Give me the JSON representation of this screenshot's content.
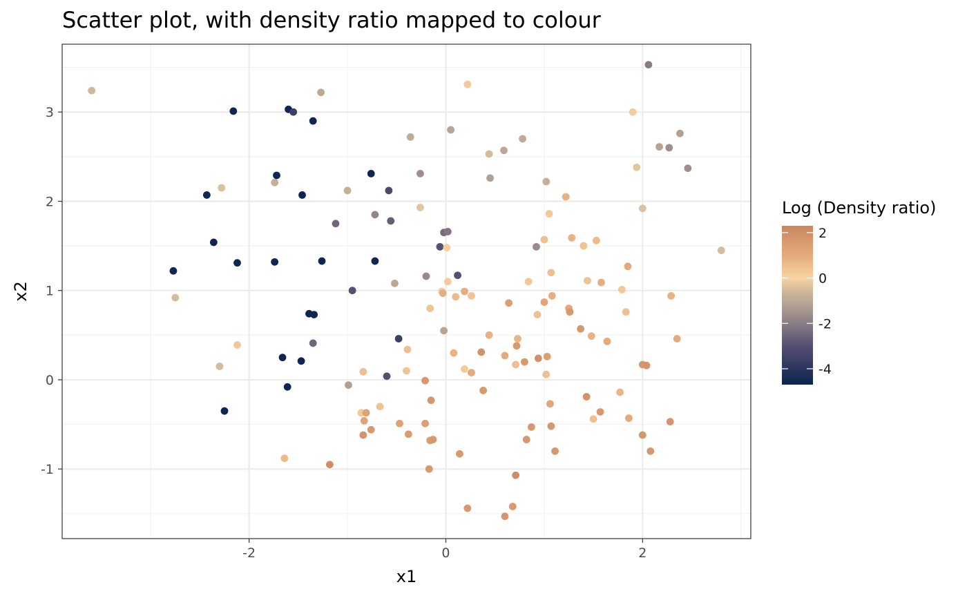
{
  "chart_data": {
    "type": "scatter",
    "title": "Scatter plot, with density ratio mapped to colour",
    "xlabel": "x1",
    "ylabel": "x2",
    "xlim": [
      -3.9,
      3.1
    ],
    "ylim": [
      -1.78,
      3.76
    ],
    "x_ticks": [
      -2,
      0,
      2
    ],
    "y_ticks": [
      -1,
      0,
      1,
      2,
      3
    ],
    "x_tick_labels": [
      "-2",
      "0",
      "2"
    ],
    "y_tick_labels": [
      "-1",
      "0",
      "1",
      "2",
      "3"
    ],
    "grid": true,
    "legend": {
      "title": "Log (Density ratio)",
      "placement": "right",
      "range": [
        -4.7,
        2.3
      ],
      "ticks": [
        2,
        0,
        -2,
        -4
      ],
      "tick_labels": [
        "2",
        "0",
        "-2",
        "-4"
      ],
      "color_stops": [
        {
          "value": -4.7,
          "color": "#0c2350"
        },
        {
          "value": -3.0,
          "color": "#554f71"
        },
        {
          "value": -1.5,
          "color": "#a3948f"
        },
        {
          "value": -0.5,
          "color": "#d4bc9a"
        },
        {
          "value": 0.0,
          "color": "#f9d3a2"
        },
        {
          "value": 1.0,
          "color": "#e4aa7c"
        },
        {
          "value": 2.3,
          "color": "#c98660"
        }
      ]
    },
    "points": [
      {
        "x": -3.6,
        "y": 3.24,
        "c": -0.6
      },
      {
        "x": -2.77,
        "y": 1.22,
        "c": -4.6
      },
      {
        "x": -2.75,
        "y": 0.92,
        "c": -0.5
      },
      {
        "x": -2.43,
        "y": 2.07,
        "c": -4.6
      },
      {
        "x": -2.36,
        "y": 1.54,
        "c": -4.6
      },
      {
        "x": -2.3,
        "y": 0.15,
        "c": -0.5
      },
      {
        "x": -2.28,
        "y": 2.15,
        "c": -0.4
      },
      {
        "x": -2.25,
        "y": -0.35,
        "c": -4.6
      },
      {
        "x": -2.16,
        "y": 3.01,
        "c": -4.6
      },
      {
        "x": -2.12,
        "y": 1.31,
        "c": -4.6
      },
      {
        "x": -2.12,
        "y": 0.39,
        "c": 0.3
      },
      {
        "x": -1.74,
        "y": 2.21,
        "c": -0.8
      },
      {
        "x": -1.74,
        "y": 1.32,
        "c": -4.6
      },
      {
        "x": -1.72,
        "y": 2.29,
        "c": -4.6
      },
      {
        "x": -1.66,
        "y": 0.25,
        "c": -4.6
      },
      {
        "x": -1.64,
        "y": -0.88,
        "c": 0.6
      },
      {
        "x": -1.61,
        "y": -0.08,
        "c": -4.6
      },
      {
        "x": -1.6,
        "y": 3.03,
        "c": -4.6
      },
      {
        "x": -1.55,
        "y": 3.0,
        "c": -3.6
      },
      {
        "x": -1.47,
        "y": 0.21,
        "c": -4.6
      },
      {
        "x": -1.46,
        "y": 2.07,
        "c": -4.6
      },
      {
        "x": -1.39,
        "y": 0.74,
        "c": -4.6
      },
      {
        "x": -1.35,
        "y": 2.9,
        "c": -4.6
      },
      {
        "x": -1.35,
        "y": 0.41,
        "c": -2.5
      },
      {
        "x": -1.34,
        "y": 0.73,
        "c": -4.6
      },
      {
        "x": -1.27,
        "y": 3.22,
        "c": -1.0
      },
      {
        "x": -1.26,
        "y": 1.33,
        "c": -4.6
      },
      {
        "x": -1.18,
        "y": -0.95,
        "c": 2.0
      },
      {
        "x": -1.12,
        "y": 1.75,
        "c": -2.5
      },
      {
        "x": -1.0,
        "y": 2.12,
        "c": -0.8
      },
      {
        "x": -0.99,
        "y": -0.06,
        "c": -1.2
      },
      {
        "x": -0.95,
        "y": 1.0,
        "c": -3.0
      },
      {
        "x": -0.86,
        "y": -0.37,
        "c": 0.3
      },
      {
        "x": -0.84,
        "y": -0.62,
        "c": 1.8
      },
      {
        "x": -0.84,
        "y": 0.09,
        "c": 0.5
      },
      {
        "x": -0.83,
        "y": -0.46,
        "c": 1.2
      },
      {
        "x": -0.81,
        "y": -0.37,
        "c": 1.3
      },
      {
        "x": -0.76,
        "y": -0.56,
        "c": 1.6
      },
      {
        "x": -0.76,
        "y": 2.31,
        "c": -4.6
      },
      {
        "x": -0.72,
        "y": 1.85,
        "c": -1.8
      },
      {
        "x": -0.72,
        "y": 1.33,
        "c": -4.6
      },
      {
        "x": -0.67,
        "y": -0.3,
        "c": 0.4
      },
      {
        "x": -0.58,
        "y": 2.12,
        "c": -3.2
      },
      {
        "x": -0.6,
        "y": 0.04,
        "c": -3.0
      },
      {
        "x": -0.56,
        "y": 1.78,
        "c": -2.7
      },
      {
        "x": -0.52,
        "y": 1.08,
        "c": -1.0
      },
      {
        "x": -0.48,
        "y": 0.46,
        "c": -3.6
      },
      {
        "x": -0.47,
        "y": -0.49,
        "c": 1.3
      },
      {
        "x": -0.4,
        "y": 0.1,
        "c": 0.4
      },
      {
        "x": -0.39,
        "y": 0.34,
        "c": 0.5
      },
      {
        "x": -0.38,
        "y": -0.61,
        "c": 1.5
      },
      {
        "x": -0.36,
        "y": 2.72,
        "c": -0.9
      },
      {
        "x": -0.26,
        "y": 2.31,
        "c": -1.6
      },
      {
        "x": -0.26,
        "y": 1.93,
        "c": -0.3
      },
      {
        "x": -0.21,
        "y": -0.49,
        "c": 1.4
      },
      {
        "x": -0.21,
        "y": -0.01,
        "c": 1.7
      },
      {
        "x": -0.2,
        "y": 1.16,
        "c": -1.7
      },
      {
        "x": -0.17,
        "y": -1.0,
        "c": 1.6
      },
      {
        "x": -0.16,
        "y": 0.8,
        "c": 0.4
      },
      {
        "x": -0.16,
        "y": -0.68,
        "c": 1.5
      },
      {
        "x": -0.15,
        "y": -0.23,
        "c": 1.7
      },
      {
        "x": -0.13,
        "y": -0.67,
        "c": 1.6
      },
      {
        "x": -0.06,
        "y": 1.49,
        "c": -3.0
      },
      {
        "x": -0.04,
        "y": 0.99,
        "c": 0.2
      },
      {
        "x": -0.03,
        "y": 0.97,
        "c": 0.9
      },
      {
        "x": -0.02,
        "y": 1.65,
        "c": -2.4
      },
      {
        "x": -0.02,
        "y": 0.55,
        "c": -1.1
      },
      {
        "x": 0.01,
        "y": 1.48,
        "c": 0.1
      },
      {
        "x": 0.02,
        "y": 1.66,
        "c": -2.2
      },
      {
        "x": 0.02,
        "y": 1.1,
        "c": 0.2
      },
      {
        "x": 0.05,
        "y": 2.8,
        "c": -1.1
      },
      {
        "x": 0.08,
        "y": 0.3,
        "c": 0.8
      },
      {
        "x": 0.1,
        "y": 0.93,
        "c": 0.6
      },
      {
        "x": 0.12,
        "y": 1.17,
        "c": -3.0
      },
      {
        "x": 0.14,
        "y": -0.83,
        "c": 1.6
      },
      {
        "x": 0.19,
        "y": 0.12,
        "c": 0.2
      },
      {
        "x": 0.19,
        "y": 0.99,
        "c": 0.9
      },
      {
        "x": 0.22,
        "y": 3.31,
        "c": 0.3
      },
      {
        "x": 0.22,
        "y": -1.44,
        "c": 1.6
      },
      {
        "x": 0.26,
        "y": 0.94,
        "c": 0.4
      },
      {
        "x": 0.26,
        "y": 0.08,
        "c": 1.0
      },
      {
        "x": 0.36,
        "y": 0.31,
        "c": 1.9
      },
      {
        "x": 0.38,
        "y": -0.12,
        "c": 1.6
      },
      {
        "x": 0.44,
        "y": 2.53,
        "c": -0.5
      },
      {
        "x": 0.44,
        "y": 0.5,
        "c": 0.8
      },
      {
        "x": 0.45,
        "y": 2.26,
        "c": -1.2
      },
      {
        "x": 0.59,
        "y": 2.57,
        "c": -1.0
      },
      {
        "x": 0.6,
        "y": 0.27,
        "c": 1.0
      },
      {
        "x": 0.6,
        "y": -1.53,
        "c": 1.7
      },
      {
        "x": 0.64,
        "y": 0.86,
        "c": 1.4
      },
      {
        "x": 0.68,
        "y": -1.42,
        "c": 1.6
      },
      {
        "x": 0.71,
        "y": -1.07,
        "c": 2.0
      },
      {
        "x": 0.71,
        "y": 0.17,
        "c": 0.5
      },
      {
        "x": 0.72,
        "y": 0.38,
        "c": 1.6
      },
      {
        "x": 0.73,
        "y": 0.46,
        "c": 0.7
      },
      {
        "x": 0.78,
        "y": 2.7,
        "c": -0.9
      },
      {
        "x": 0.8,
        "y": 0.2,
        "c": 1.6
      },
      {
        "x": 0.82,
        "y": -0.67,
        "c": 1.7
      },
      {
        "x": 0.84,
        "y": 1.1,
        "c": 0.3
      },
      {
        "x": 0.87,
        "y": -0.53,
        "c": 1.6
      },
      {
        "x": 0.92,
        "y": 1.49,
        "c": -1.7
      },
      {
        "x": 0.93,
        "y": 0.73,
        "c": 0.5
      },
      {
        "x": 0.94,
        "y": 0.24,
        "c": 1.9
      },
      {
        "x": 1.0,
        "y": 1.57,
        "c": 0.5
      },
      {
        "x": 1.0,
        "y": 0.87,
        "c": 1.2
      },
      {
        "x": 1.02,
        "y": 0.06,
        "c": 0.5
      },
      {
        "x": 1.02,
        "y": 2.22,
        "c": -0.8
      },
      {
        "x": 1.03,
        "y": 0.26,
        "c": 1.4
      },
      {
        "x": 1.05,
        "y": 1.86,
        "c": 0.3
      },
      {
        "x": 1.06,
        "y": -0.27,
        "c": 1.2
      },
      {
        "x": 1.07,
        "y": 1.2,
        "c": 0.5
      },
      {
        "x": 1.07,
        "y": -0.52,
        "c": 1.7
      },
      {
        "x": 1.08,
        "y": 0.94,
        "c": 0.9
      },
      {
        "x": 1.11,
        "y": -0.8,
        "c": 1.6
      },
      {
        "x": 1.22,
        "y": 2.05,
        "c": 0.8
      },
      {
        "x": 1.25,
        "y": 0.8,
        "c": 1.0
      },
      {
        "x": 1.26,
        "y": 0.76,
        "c": 1.6
      },
      {
        "x": 1.28,
        "y": 1.59,
        "c": 0.8
      },
      {
        "x": 1.37,
        "y": 0.57,
        "c": 1.7
      },
      {
        "x": 1.4,
        "y": 1.5,
        "c": 0.4
      },
      {
        "x": 1.43,
        "y": -0.19,
        "c": 1.9
      },
      {
        "x": 1.44,
        "y": 1.11,
        "c": 0.4
      },
      {
        "x": 1.48,
        "y": 0.49,
        "c": 0.8
      },
      {
        "x": 1.5,
        "y": -0.44,
        "c": 0.5
      },
      {
        "x": 1.53,
        "y": 1.56,
        "c": 0.6
      },
      {
        "x": 1.57,
        "y": -0.36,
        "c": 1.6
      },
      {
        "x": 1.58,
        "y": 1.09,
        "c": 0.9
      },
      {
        "x": 1.64,
        "y": 0.43,
        "c": 1.0
      },
      {
        "x": 1.77,
        "y": -0.14,
        "c": 0.7
      },
      {
        "x": 1.79,
        "y": 1.01,
        "c": 0.3
      },
      {
        "x": 1.83,
        "y": 0.76,
        "c": 0.5
      },
      {
        "x": 1.85,
        "y": 1.27,
        "c": 1.0
      },
      {
        "x": 1.86,
        "y": -0.43,
        "c": 1.0
      },
      {
        "x": 1.9,
        "y": 3.0,
        "c": 0.2
      },
      {
        "x": 1.94,
        "y": 2.38,
        "c": -0.3
      },
      {
        "x": 2.0,
        "y": 0.17,
        "c": 1.7
      },
      {
        "x": 2.0,
        "y": -0.62,
        "c": 1.7
      },
      {
        "x": 2.0,
        "y": 1.92,
        "c": -0.4
      },
      {
        "x": 2.04,
        "y": 0.16,
        "c": 1.8
      },
      {
        "x": 2.06,
        "y": 3.53,
        "c": -2.0
      },
      {
        "x": 2.08,
        "y": -0.8,
        "c": 1.7
      },
      {
        "x": 2.17,
        "y": 2.61,
        "c": -1.1
      },
      {
        "x": 2.27,
        "y": 2.6,
        "c": -1.6
      },
      {
        "x": 2.28,
        "y": -0.47,
        "c": 1.8
      },
      {
        "x": 2.29,
        "y": 0.94,
        "c": 0.8
      },
      {
        "x": 2.35,
        "y": 0.46,
        "c": 1.0
      },
      {
        "x": 2.38,
        "y": 2.76,
        "c": -1.2
      },
      {
        "x": 2.46,
        "y": 2.37,
        "c": -1.6
      },
      {
        "x": 2.8,
        "y": 1.45,
        "c": -0.5
      }
    ]
  }
}
